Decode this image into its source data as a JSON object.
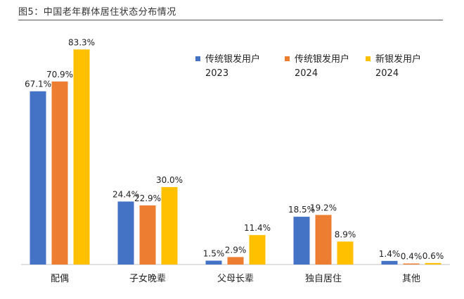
{
  "figure": {
    "title": "图5：中国老年群体居住状态分布情况"
  },
  "chart_data": {
    "type": "bar",
    "title": "图5：中国老年群体居住状态分布情况",
    "xlabel": "",
    "ylabel": "",
    "ylim": [
      0,
      90
    ],
    "grid": false,
    "legend_position": "top-right",
    "categories": [
      "配偶",
      "子女晚辈",
      "父母长辈",
      "独自居住",
      "其他"
    ],
    "series": [
      {
        "name": "传统银发用户2023",
        "legend_lines": [
          "传统银发用户",
          "2023"
        ],
        "color": "#4472C4",
        "values": [
          67.1,
          24.4,
          1.5,
          18.5,
          1.4
        ],
        "labels": [
          "67.1%",
          "24.4%",
          "1.5%",
          "18.5%",
          "1.4%"
        ]
      },
      {
        "name": "传统银发用户2024",
        "legend_lines": [
          "传统银发用户",
          "2024"
        ],
        "color": "#ED7D31",
        "values": [
          70.9,
          22.9,
          2.9,
          19.2,
          0.4
        ],
        "labels": [
          "70.9%",
          "22.9%",
          "2.9%",
          "19.2%",
          "0.4%"
        ]
      },
      {
        "name": "新银发用户2024",
        "legend_lines": [
          "新银发用户",
          "2024"
        ],
        "color": "#FFC000",
        "values": [
          83.3,
          30.0,
          11.4,
          8.9,
          0.6
        ],
        "labels": [
          "83.3%",
          "30.0%",
          "11.4%",
          "8.9%",
          "0.6%"
        ]
      }
    ]
  }
}
